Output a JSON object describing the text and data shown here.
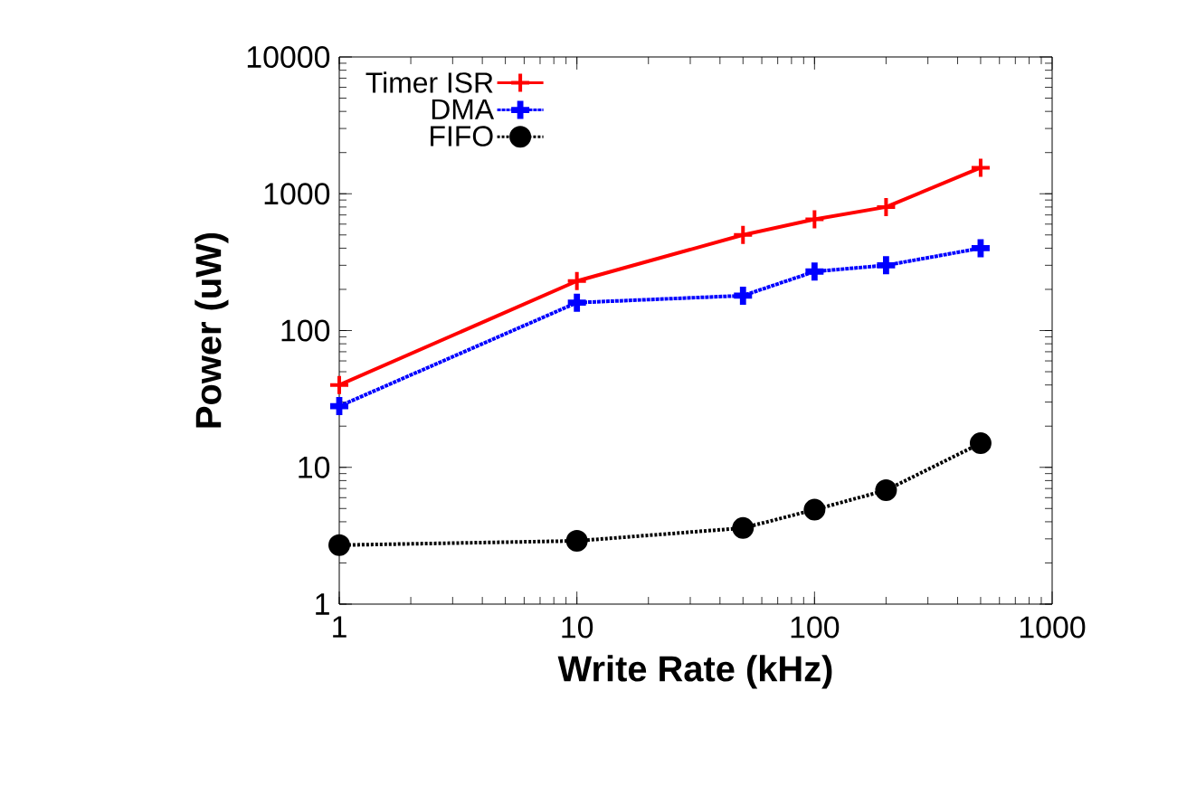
{
  "chart_data": {
    "type": "line",
    "xlabel": "Write Rate (kHz)",
    "ylabel": "Power (uW)",
    "log": "xy",
    "x": [
      1,
      10,
      50,
      100,
      200,
      500
    ],
    "series": [
      {
        "name": "Timer ISR",
        "color": "#ff0000",
        "values": [
          40,
          230,
          500,
          650,
          800,
          1550
        ],
        "marker": "cross",
        "line_style": "solid"
      },
      {
        "name": "DMA",
        "color": "#0000ff",
        "values": [
          28,
          160,
          180,
          270,
          300,
          400
        ],
        "marker": "cross",
        "line_style": "dotted"
      },
      {
        "name": "FIFO",
        "color": "#000000",
        "values": [
          2.7,
          2.9,
          3.6,
          4.9,
          6.8,
          15
        ],
        "marker": "circle",
        "line_style": "dashed"
      }
    ],
    "xlim": [
      1,
      1000
    ],
    "ylim": [
      1,
      10000
    ],
    "xticks": [
      1,
      10,
      100,
      1000
    ],
    "yticks": [
      1,
      10,
      100,
      1000,
      10000
    ],
    "grid": false,
    "legend": "top left"
  }
}
